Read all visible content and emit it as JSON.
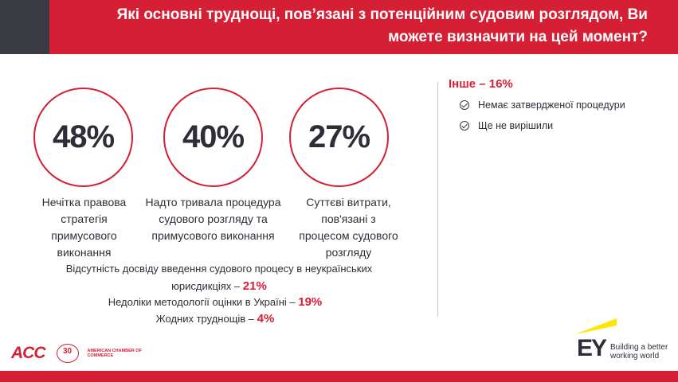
{
  "header": {
    "title": "Які основні труднощі, пов’язані з потенційним судовим розглядом, Ви можете визначити на цей момент?"
  },
  "stats": [
    {
      "value": "48%",
      "caption": "Нечітка правова стратегія примусового виконання"
    },
    {
      "value": "40%",
      "caption": "Надто тривала процедура судового розгляду та примусового виконання"
    },
    {
      "value": "27%",
      "caption": "Суттєві витрати, пов'язані з процесом судового розгляду"
    }
  ],
  "extras": [
    {
      "text": "Відсутність досвіду введення судового процесу  в неукраїнських юрисдикціях –",
      "pct": "21%"
    },
    {
      "text": "Недоліки методології оцінки в Україні –",
      "pct": "19%"
    },
    {
      "text": "Жодних труднощів –",
      "pct": "4%"
    }
  ],
  "other": {
    "heading": "Інше – 16%",
    "items": [
      "Немає затвердженої процедури",
      "Ще не вирішили"
    ]
  },
  "logos": {
    "acc_text": "ACC",
    "acc_seal_number": "30",
    "acc_amcham": "AMERICAN CHAMBER OF COMMERCE",
    "ey_letters": "EY",
    "ey_tagline_line1": "Building a better",
    "ey_tagline_line2": "working world"
  },
  "colors": {
    "accent": "#d51f35",
    "dark": "#3b3b43",
    "ey_yellow": "#ffe600",
    "text": "#2e2e38"
  }
}
